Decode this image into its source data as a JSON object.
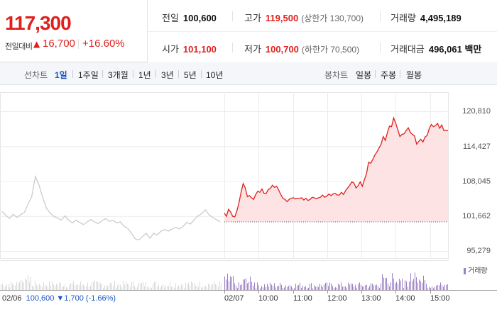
{
  "quote": {
    "price": "117,300",
    "change_label": "전일대비",
    "change_arrow": "▲",
    "change_value": "16,700",
    "change_pct": "+16.60%"
  },
  "stats": {
    "prev_close_label": "전일",
    "prev_close": "100,600",
    "high_label": "고가",
    "high": "119,500",
    "upper_limit": "(상한가 130,700)",
    "volume_label": "거래량",
    "volume": "4,495,189",
    "open_label": "시가",
    "open": "101,100",
    "low_label": "저가",
    "low": "100,700",
    "lower_limit": "(하한가 70,500)",
    "turnover_label": "거래대금",
    "turnover": "496,061 백만"
  },
  "tabs": {
    "line_header": "선차트",
    "line_periods": [
      "1일",
      "1주일",
      "3개월",
      "1년",
      "3년",
      "5년",
      "10년"
    ],
    "active": "1일",
    "candle_header": "봉차트",
    "candle_periods": [
      "일봉",
      "주봉",
      "월봉"
    ]
  },
  "colors": {
    "up": "#e0201d",
    "down": "#1a56c8",
    "accent": "#1a56c8",
    "prev_day_line": "#c8c8c8",
    "volume": "#9b7fc6"
  },
  "chart_data": {
    "type": "line",
    "y_ticks": [
      "120,810",
      "114,427",
      "108,045",
      "101,662",
      "95,279"
    ],
    "y_tick_values": [
      120810,
      114427,
      108045,
      101662,
      95279
    ],
    "ylim": [
      95279,
      120810
    ],
    "reference_line": 100600,
    "x_labels": [
      "02/06",
      "02/07",
      "10:00",
      "11:00",
      "12:00",
      "13:00",
      "14:00",
      "15:00"
    ],
    "prev_day": {
      "date": "02/06",
      "close": "100,600",
      "change_arrow": "▼",
      "change": "1,700",
      "change_pct": "(-1.66%)",
      "values": [
        102500,
        101800,
        101200,
        102000,
        101400,
        101900,
        102300,
        103800,
        105200,
        108900,
        107300,
        105000,
        103100,
        102200,
        101600,
        101300,
        100900,
        101700,
        100900,
        100400,
        100900,
        100500,
        100100,
        100600,
        101000,
        100600,
        100300,
        100800,
        101200,
        100700,
        100900,
        100400,
        100600,
        99800,
        99400,
        98500,
        97500,
        97300,
        97900,
        98500,
        97600,
        98500,
        98200,
        98900,
        99200,
        98900,
        99300,
        99600,
        99300,
        99800,
        100500,
        100200,
        101000,
        101700,
        102100,
        102800,
        101900,
        101400,
        101000,
        100600
      ]
    },
    "today": {
      "date": "02/07",
      "values": [
        102200,
        101600,
        102900,
        102400,
        101600,
        101500,
        102600,
        104100,
        106000,
        107600,
        106800,
        105200,
        105400,
        105000,
        104700,
        105600,
        106200,
        106000,
        106600,
        105800,
        105800,
        106500,
        106700,
        107300,
        106900,
        107100,
        106400,
        105600,
        104900,
        104700,
        104300,
        104700,
        104900,
        105000,
        104800,
        104900,
        104900,
        105000,
        104600,
        104900,
        104500,
        104700,
        105100,
        105000,
        104800,
        105000,
        105100,
        105500,
        105100,
        105300,
        105700,
        105400,
        105700,
        105800,
        105500,
        105500,
        106000,
        105600,
        106300,
        106800,
        107300,
        107900,
        107700,
        106800,
        107200,
        107900,
        107100,
        108300,
        109400,
        111500,
        111300,
        112000,
        112800,
        113400,
        114100,
        114800,
        116200,
        115500,
        116900,
        118100,
        118000,
        119600,
        118600,
        117400,
        116200,
        116600,
        116700,
        117300,
        117800,
        116900,
        116600,
        116300,
        114800,
        115300,
        115700,
        115200,
        116100,
        116400,
        117600,
        118400,
        118000,
        118200,
        118600,
        117700,
        118300,
        117300,
        117300,
        117300
      ]
    },
    "volume_legend": "거래량"
  }
}
